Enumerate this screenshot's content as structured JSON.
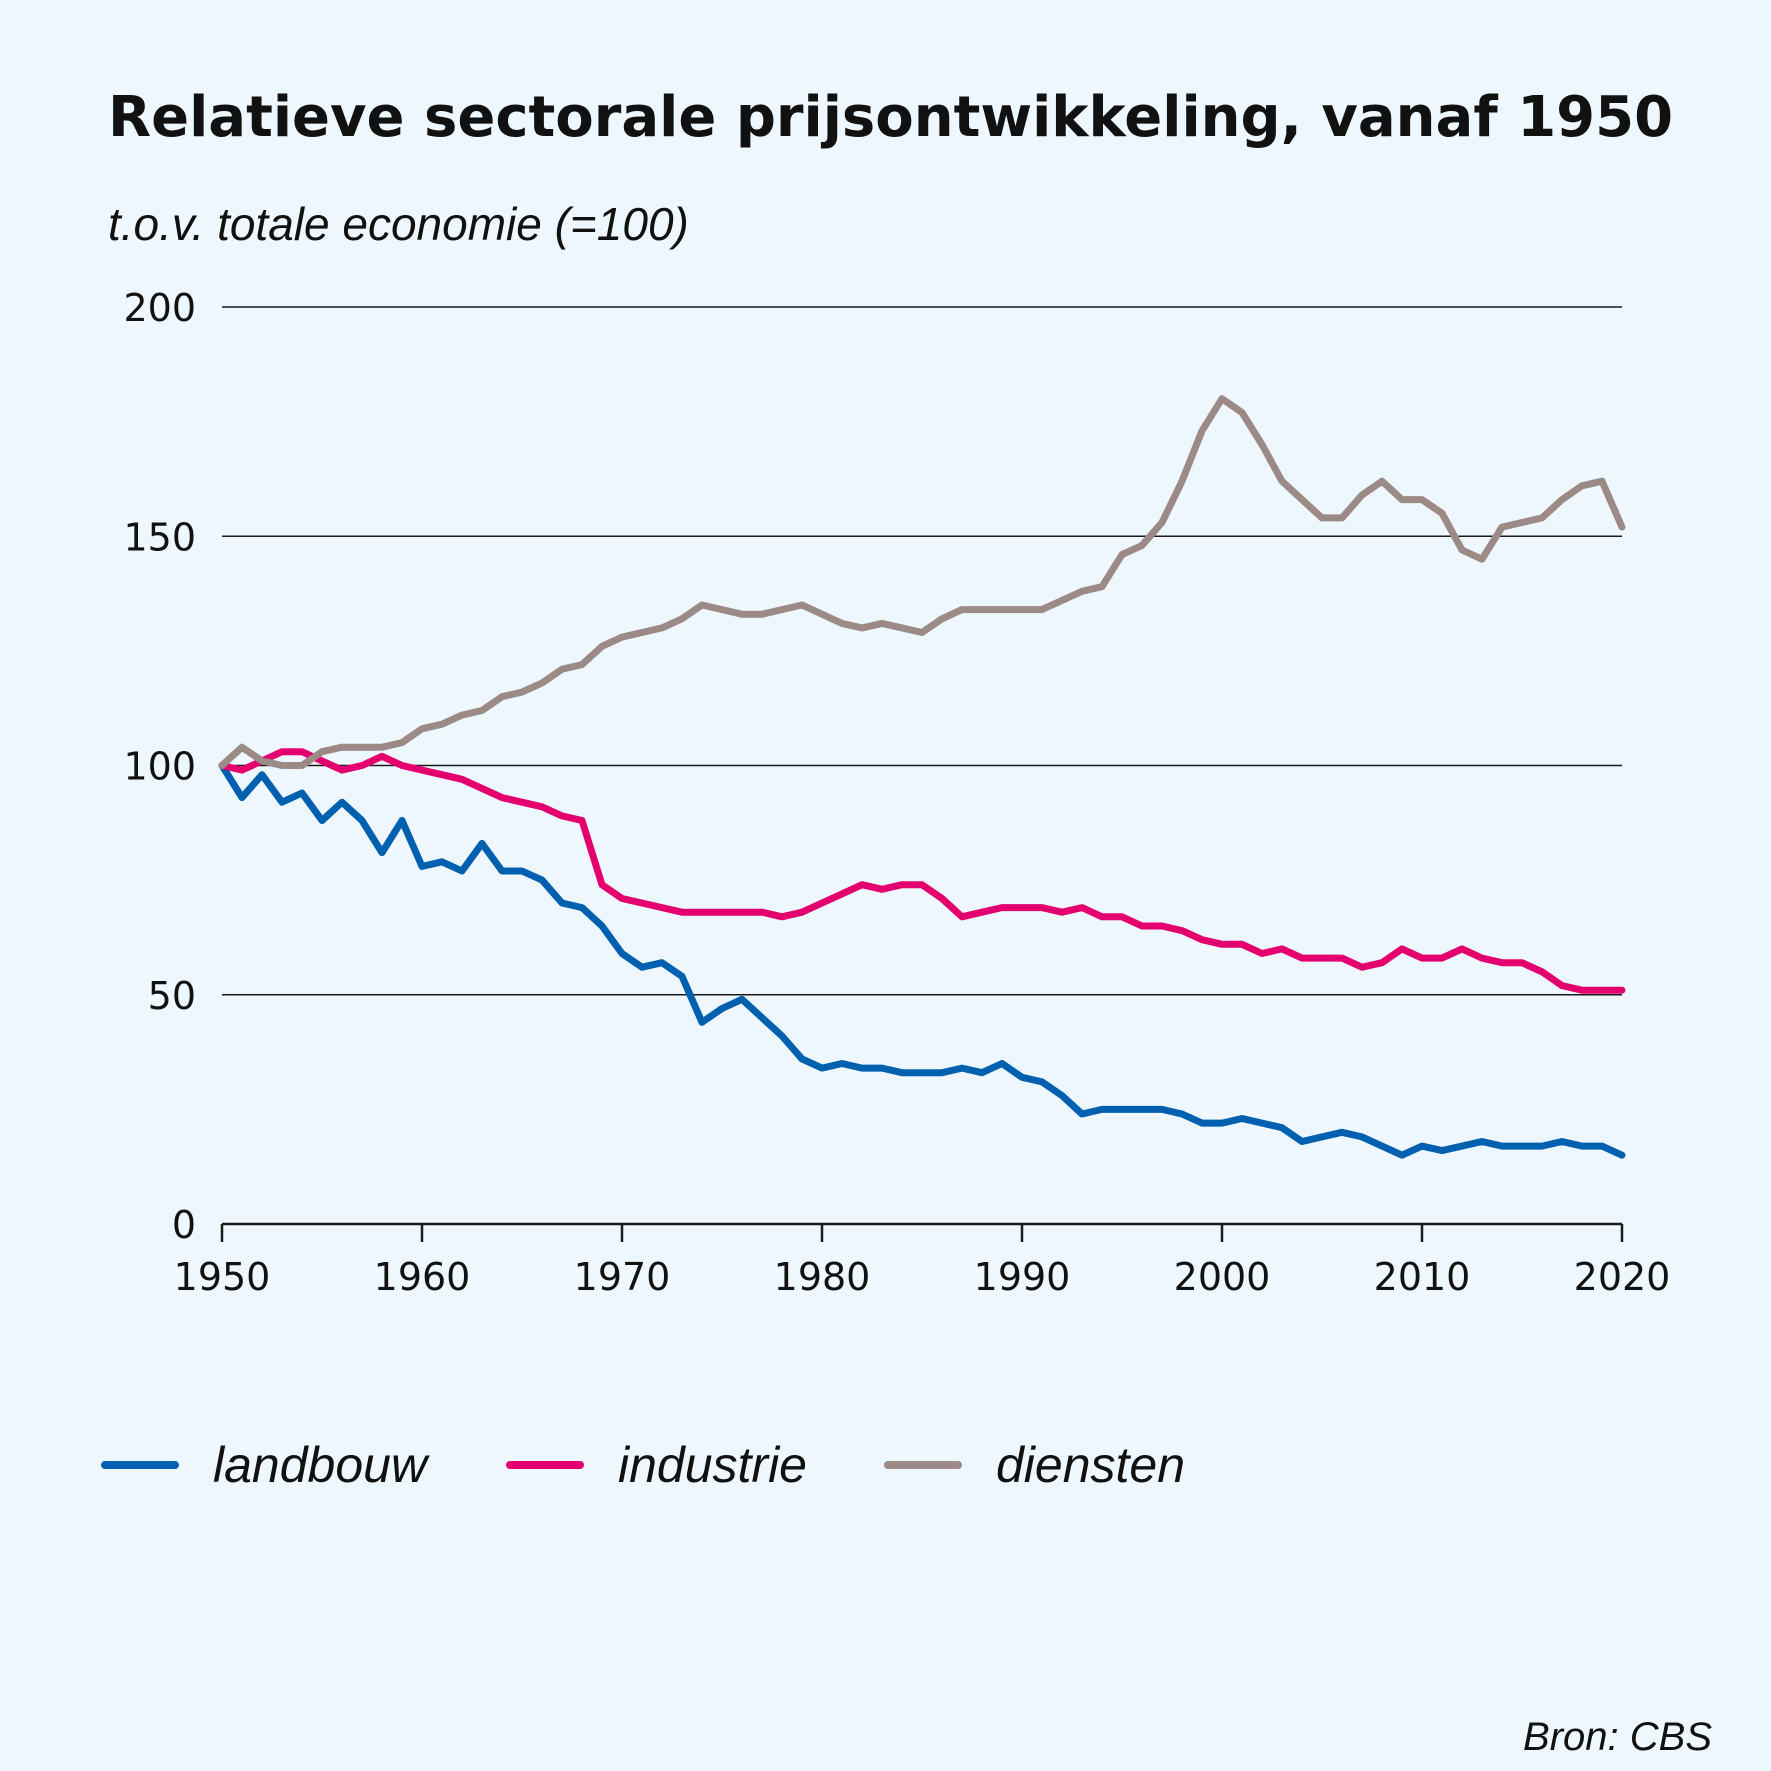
{
  "chart_data": {
    "type": "line",
    "title": "Relatieve sectorale prijsontwikkeling, vanaf 1950",
    "subtitle": "t.o.v. totale economie (=100)",
    "xlabel": "",
    "ylabel": "",
    "xlim": [
      1950,
      2020
    ],
    "ylim": [
      0,
      200
    ],
    "yticks": [
      0,
      50,
      100,
      150,
      200
    ],
    "xticks": [
      1950,
      1960,
      1970,
      1980,
      1990,
      2000,
      2010,
      2020
    ],
    "grid": true,
    "legend_position": "bottom-left",
    "source": "Bron: CBS",
    "x": [
      1950,
      1951,
      1952,
      1953,
      1954,
      1955,
      1956,
      1957,
      1958,
      1959,
      1960,
      1961,
      1962,
      1963,
      1964,
      1965,
      1966,
      1967,
      1968,
      1969,
      1970,
      1971,
      1972,
      1973,
      1974,
      1975,
      1976,
      1977,
      1978,
      1979,
      1980,
      1981,
      1982,
      1983,
      1984,
      1985,
      1986,
      1987,
      1988,
      1989,
      1990,
      1991,
      1992,
      1993,
      1994,
      1995,
      1996,
      1997,
      1998,
      1999,
      2000,
      2001,
      2002,
      2003,
      2004,
      2005,
      2006,
      2007,
      2008,
      2009,
      2010,
      2011,
      2012,
      2013,
      2014,
      2015,
      2016,
      2017,
      2018,
      2019,
      2020
    ],
    "series": [
      {
        "name": "landbouw",
        "color": "#0060b0",
        "values": [
          100,
          93,
          98,
          92,
          94,
          88,
          92,
          88,
          81,
          88,
          78,
          79,
          77,
          83,
          77,
          77,
          75,
          70,
          69,
          65,
          59,
          56,
          57,
          54,
          44,
          47,
          49,
          45,
          41,
          36,
          34,
          35,
          34,
          34,
          33,
          33,
          33,
          34,
          33,
          35,
          32,
          31,
          28,
          24,
          25,
          25,
          25,
          25,
          24,
          22,
          22,
          23,
          22,
          21,
          18,
          19,
          20,
          19,
          17,
          15,
          17,
          16,
          17,
          18,
          17,
          17,
          17,
          18,
          17,
          17,
          15
        ]
      },
      {
        "name": "industrie",
        "color": "#e3006e",
        "values": [
          100,
          99,
          101,
          103,
          103,
          101,
          99,
          100,
          102,
          100,
          99,
          98,
          97,
          95,
          93,
          92,
          91,
          89,
          88,
          74,
          71,
          70,
          69,
          68,
          68,
          68,
          68,
          68,
          67,
          68,
          70,
          72,
          74,
          73,
          74,
          74,
          71,
          67,
          68,
          69,
          69,
          69,
          68,
          69,
          67,
          67,
          65,
          65,
          64,
          62,
          61,
          61,
          59,
          60,
          58,
          58,
          58,
          56,
          57,
          60,
          58,
          58,
          60,
          58,
          57,
          57,
          55,
          52,
          51,
          51,
          51
        ]
      },
      {
        "name": "diensten",
        "color": "#9b8a86",
        "values": [
          100,
          104,
          101,
          100,
          100,
          103,
          104,
          104,
          104,
          105,
          108,
          109,
          111,
          112,
          115,
          116,
          118,
          121,
          122,
          126,
          128,
          129,
          130,
          132,
          135,
          134,
          133,
          133,
          134,
          135,
          133,
          131,
          130,
          131,
          130,
          129,
          132,
          134,
          134,
          134,
          134,
          134,
          136,
          138,
          139,
          146,
          148,
          153,
          162,
          173,
          180,
          177,
          170,
          162,
          158,
          154,
          154,
          159,
          162,
          158,
          158,
          155,
          147,
          145,
          152,
          153,
          154,
          158,
          161,
          162,
          152
        ]
      }
    ]
  }
}
